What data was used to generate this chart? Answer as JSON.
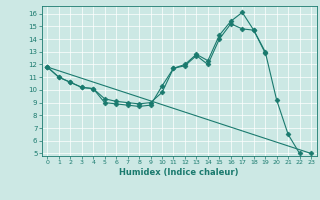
{
  "xlabel": "Humidex (Indice chaleur)",
  "bg_color": "#cce8e4",
  "grid_color": "#ffffff",
  "line_color": "#1a7a6e",
  "xlim": [
    -0.5,
    23.5
  ],
  "ylim": [
    4.8,
    16.6
  ],
  "yticks": [
    5,
    6,
    7,
    8,
    9,
    10,
    11,
    12,
    13,
    14,
    15,
    16
  ],
  "xticks": [
    0,
    1,
    2,
    3,
    4,
    5,
    6,
    7,
    8,
    9,
    10,
    11,
    12,
    13,
    14,
    15,
    16,
    17,
    18,
    19,
    20,
    21,
    22,
    23
  ],
  "line1_x": [
    0,
    1,
    2,
    3,
    4,
    5,
    6,
    7,
    8,
    9,
    10,
    11,
    12,
    13,
    14,
    15,
    16,
    17,
    18,
    19,
    20,
    21,
    22
  ],
  "line1_y": [
    11.8,
    11.0,
    10.6,
    10.2,
    10.1,
    9.0,
    8.9,
    8.8,
    8.7,
    8.8,
    10.3,
    11.7,
    12.0,
    12.8,
    12.3,
    14.3,
    15.4,
    16.1,
    14.7,
    13.0,
    9.2,
    6.5,
    5.0
  ],
  "line2_x": [
    0,
    1,
    2,
    3,
    4,
    5,
    6,
    7,
    8,
    9,
    10,
    11,
    12,
    13,
    14,
    15,
    16,
    17,
    18,
    19
  ],
  "line2_y": [
    11.8,
    11.0,
    10.6,
    10.2,
    10.1,
    9.3,
    9.1,
    9.0,
    8.9,
    9.0,
    9.8,
    11.7,
    11.9,
    12.7,
    12.0,
    14.0,
    15.2,
    14.8,
    14.7,
    12.9
  ],
  "line3_x": [
    0,
    23
  ],
  "line3_y": [
    11.8,
    5.0
  ],
  "marker": "D",
  "markersize": 2.5,
  "linewidth": 0.8
}
